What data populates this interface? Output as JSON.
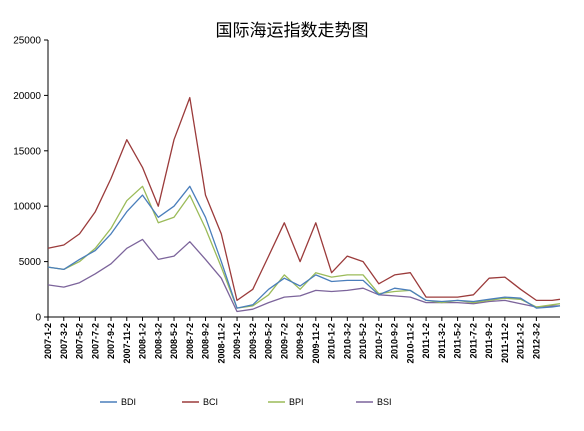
{
  "chart_data": {
    "type": "line",
    "title": "国际海运指数走势图",
    "xlabel": "",
    "ylabel": "",
    "ylim": [
      0,
      25000
    ],
    "yticks": [
      0,
      5000,
      10000,
      15000,
      20000,
      25000
    ],
    "grid": false,
    "legend_position": "bottom",
    "xtick_labels": [
      "2007-1-2",
      "2007-3-2",
      "2007-5-2",
      "2007-7-2",
      "2007-9-2",
      "2007-11-2",
      "2008-1-2",
      "2008-3-2",
      "2008-5-2",
      "2008-7-2",
      "2008-9-2",
      "2008-11-2",
      "2009-1-2",
      "2009-3-2",
      "2009-5-2",
      "2009-7-2",
      "2009-9-2",
      "2009-11-2",
      "2010-1-2",
      "2010-3-2",
      "2010-5-2",
      "2010-7-2",
      "2010-9-2",
      "2010-11-2",
      "2011-1-2",
      "2011-3-2",
      "2011-5-2",
      "2011-7-2",
      "2011-9-2",
      "2011-11-2",
      "2012-1-2",
      "2012-3-2"
    ],
    "x_months": [
      0,
      2,
      4,
      6,
      8,
      10,
      12,
      14,
      16,
      18,
      20,
      22,
      24,
      26,
      28,
      30,
      32,
      34,
      36,
      38,
      40,
      42,
      44,
      46,
      48,
      50,
      52,
      54,
      56,
      58,
      60,
      62,
      64,
      65
    ],
    "series": [
      {
        "name": "BDI",
        "color": "#4a7ebb",
        "values": [
          4500,
          4300,
          5200,
          6000,
          7500,
          9500,
          11000,
          9000,
          10000,
          11800,
          9000,
          5000,
          800,
          1100,
          2500,
          3500,
          2800,
          3800,
          3200,
          3300,
          3300,
          2000,
          2600,
          2400,
          1500,
          1400,
          1500,
          1400,
          1600,
          1800,
          1700,
          800,
          900,
          1000
        ]
      },
      {
        "name": "BCI",
        "color": "#9b3b3b",
        "values": [
          6200,
          6500,
          7500,
          9500,
          12500,
          16000,
          13500,
          10000,
          16000,
          19800,
          11000,
          7500,
          1500,
          2500,
          5500,
          8500,
          5000,
          8500,
          4000,
          5500,
          5000,
          3000,
          3800,
          4000,
          1800,
          1800,
          1800,
          2000,
          3500,
          3600,
          2500,
          1500,
          1500,
          1600
        ]
      },
      {
        "name": "BPI",
        "color": "#9bbb59",
        "values": [
          4500,
          4300,
          5000,
          6200,
          8000,
          10500,
          11800,
          8500,
          9000,
          11000,
          8000,
          4500,
          800,
          1000,
          2000,
          3800,
          2500,
          4000,
          3600,
          3800,
          3800,
          2100,
          2300,
          2400,
          1500,
          1300,
          1500,
          1300,
          1500,
          1700,
          1600,
          900,
          1100,
          1200
        ]
      },
      {
        "name": "BSI",
        "color": "#7c649b",
        "values": [
          2900,
          2700,
          3100,
          3900,
          4800,
          6200,
          7000,
          5200,
          5500,
          6800,
          5200,
          3500,
          500,
          700,
          1300,
          1800,
          1900,
          2400,
          2300,
          2400,
          2600,
          2000,
          1900,
          1800,
          1300,
          1300,
          1300,
          1200,
          1400,
          1500,
          1200,
          900,
          1000,
          1000
        ]
      }
    ]
  }
}
